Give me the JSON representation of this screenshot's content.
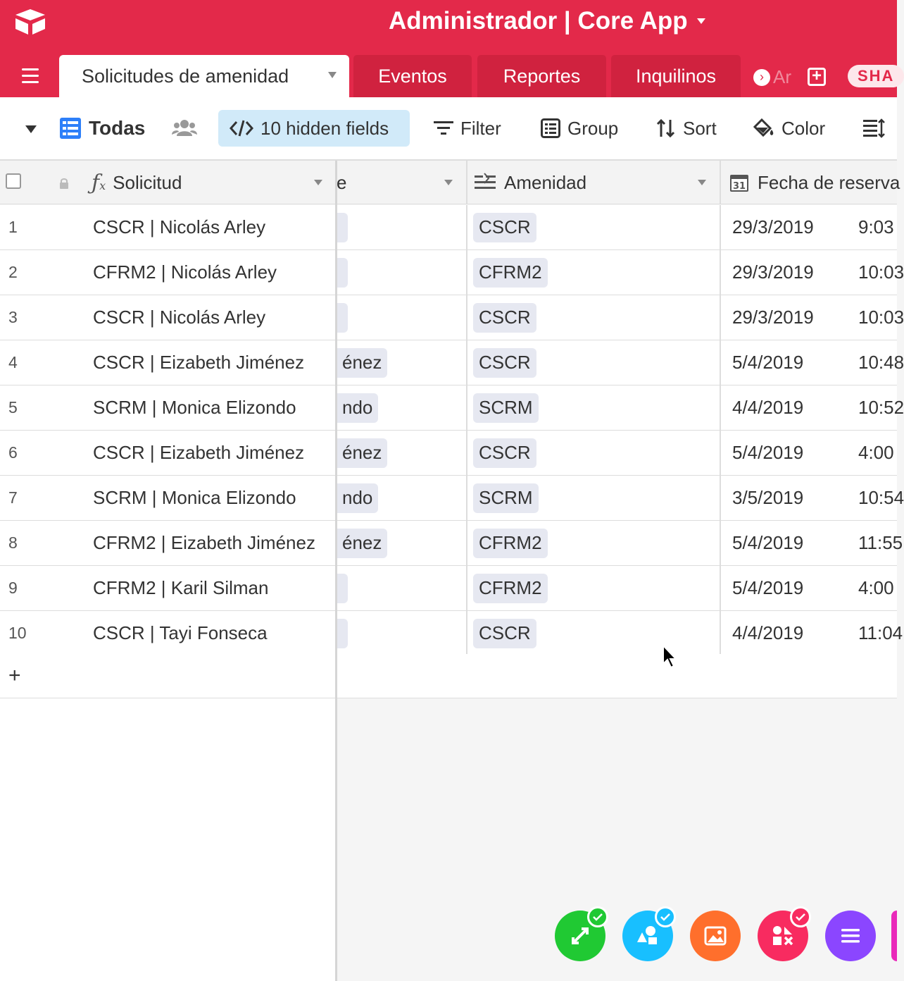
{
  "app": {
    "title": "Administrador | Core App"
  },
  "tabs": {
    "active": "Solicitudes de amenidad",
    "others": [
      "Eventos",
      "Reportes",
      "Inquilinos"
    ],
    "overflow_label": "Ar",
    "share_label": "SHA"
  },
  "toolbar": {
    "view_name": "Todas",
    "hidden_fields_label": "10 hidden fields",
    "filter_label": "Filter",
    "group_label": "Group",
    "sort_label": "Sort",
    "color_label": "Color"
  },
  "columns": {
    "solicitud": "Solicitud",
    "hidden_partial": "e",
    "amenidad": "Amenidad",
    "fecha": "Fecha de reserva"
  },
  "rows": [
    {
      "num": "1",
      "solicitud": "CSCR | Nicolás Arley",
      "hidden": "",
      "amenidad": "CSCR",
      "fecha": "29/3/2019",
      "hora": "9:03"
    },
    {
      "num": "2",
      "solicitud": "CFRM2 | Nicolás Arley",
      "hidden": "",
      "amenidad": "CFRM2",
      "fecha": "29/3/2019",
      "hora": "10:03"
    },
    {
      "num": "3",
      "solicitud": "CSCR | Nicolás Arley",
      "hidden": "",
      "amenidad": "CSCR",
      "fecha": "29/3/2019",
      "hora": "10:03"
    },
    {
      "num": "4",
      "solicitud": "CSCR | Eizabeth Jiménez",
      "hidden": "énez",
      "amenidad": "CSCR",
      "fecha": "5/4/2019",
      "hora": "10:48"
    },
    {
      "num": "5",
      "solicitud": "SCRM | Monica Elizondo",
      "hidden": "ndo",
      "amenidad": "SCRM",
      "fecha": "4/4/2019",
      "hora": "10:52"
    },
    {
      "num": "6",
      "solicitud": "CSCR | Eizabeth Jiménez",
      "hidden": "énez",
      "amenidad": "CSCR",
      "fecha": "5/4/2019",
      "hora": "4:00"
    },
    {
      "num": "7",
      "solicitud": "SCRM | Monica Elizondo",
      "hidden": "ndo",
      "amenidad": "SCRM",
      "fecha": "3/5/2019",
      "hora": "10:54"
    },
    {
      "num": "8",
      "solicitud": "CFRM2 | Eizabeth Jiménez",
      "hidden": "énez",
      "amenidad": "CFRM2",
      "fecha": "5/4/2019",
      "hora": "11:55"
    },
    {
      "num": "9",
      "solicitud": "CFRM2 | Karil Silman",
      "hidden": "",
      "amenidad": "CFRM2",
      "fecha": "5/4/2019",
      "hora": "4:00"
    },
    {
      "num": "10",
      "solicitud": "CSCR | Tayi Fonseca",
      "hidden": "",
      "amenidad": "CSCR",
      "fecha": "4/4/2019",
      "hora": "11:04"
    }
  ],
  "add_row_label": "+",
  "colors": {
    "brand": "#e3294a",
    "tab_inactive": "#d0223f",
    "hidden_fields_bg": "#d1eaf9",
    "pill_bg": "#e6e8f1",
    "fab_green": "#20c933",
    "fab_blue": "#18bfff",
    "fab_orange": "#ff6f2c",
    "fab_red": "#f82b60",
    "fab_purple": "#8b46ff"
  },
  "icons": {
    "logo": "airtable-logo",
    "fabs": [
      "expand-icon",
      "shapes-icon",
      "image-icon",
      "apps-icon",
      "list-icon"
    ]
  }
}
